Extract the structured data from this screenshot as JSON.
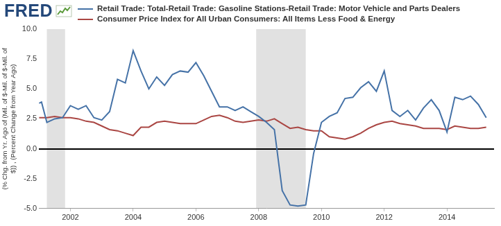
{
  "logo": "FRED",
  "chart_data": {
    "type": "line",
    "legend": "top",
    "grid": false,
    "ylabel": [
      "(% Chg. from Yr. Ago of (Mil. of $-Mil. of $-Mil. of",
      "$)) , (Percent Change from Year Ago)"
    ],
    "xlim": [
      2001,
      2015.5
    ],
    "xticks": [
      2002,
      2004,
      2006,
      2008,
      2010,
      2012,
      2014
    ],
    "ylim": [
      -5,
      10
    ],
    "yticks": [
      {
        "value": -5,
        "label": "-5.0"
      },
      {
        "value": -2.5,
        "label": "-2.5"
      },
      {
        "value": 0,
        "label": "0.0"
      },
      {
        "value": 2.5,
        "label": "2.5"
      },
      {
        "value": 5,
        "label": "5.0"
      },
      {
        "value": 7.5,
        "label": "7.5"
      },
      {
        "value": 10,
        "label": "10.0"
      }
    ],
    "shaded_periods": [
      {
        "start": 2001.25,
        "end": 2001.83
      },
      {
        "start": 2007.92,
        "end": 2009.5
      }
    ],
    "series": [
      {
        "name": "Retail Trade: Total-Retail Trade: Gasoline Stations-Retail Trade: Motor Vehicle and Parts Dealers",
        "color": "#4572a7",
        "x": [
          2001.0,
          2001.08,
          2001.25,
          2001.5,
          2001.75,
          2002.0,
          2002.25,
          2002.5,
          2002.75,
          2003.0,
          2003.25,
          2003.5,
          2003.75,
          2004.0,
          2004.25,
          2004.5,
          2004.75,
          2005.0,
          2005.25,
          2005.5,
          2005.75,
          2006.0,
          2006.25,
          2006.5,
          2006.75,
          2007.0,
          2007.25,
          2007.5,
          2007.75,
          2008.0,
          2008.25,
          2008.5,
          2008.75,
          2009.0,
          2009.25,
          2009.5,
          2009.75,
          2010.0,
          2010.25,
          2010.5,
          2010.75,
          2011.0,
          2011.25,
          2011.5,
          2011.75,
          2012.0,
          2012.25,
          2012.5,
          2012.75,
          2013.0,
          2013.25,
          2013.5,
          2013.75,
          2014.0,
          2014.25,
          2014.5,
          2014.75,
          2015.0,
          2015.25
        ],
        "values": [
          3.8,
          3.9,
          2.2,
          2.5,
          2.6,
          3.6,
          3.3,
          3.6,
          2.6,
          2.4,
          3.1,
          5.8,
          5.5,
          8.2,
          6.5,
          5.0,
          6.0,
          5.3,
          6.2,
          6.5,
          6.4,
          7.2,
          6.1,
          4.8,
          3.5,
          3.5,
          3.2,
          3.5,
          3.1,
          2.7,
          2.2,
          1.6,
          -3.5,
          -4.7,
          -4.8,
          -4.7,
          -0.4,
          2.2,
          2.7,
          3.0,
          4.2,
          4.3,
          5.1,
          5.6,
          4.8,
          6.5,
          3.2,
          2.7,
          3.2,
          2.4,
          3.4,
          4.1,
          3.2,
          1.4,
          4.3,
          4.1,
          4.4,
          3.7,
          2.6
        ]
      },
      {
        "name": "Consumer Price Index for All Urban Consumers: All Items Less Food & Energy",
        "color": "#aa4643",
        "x": [
          2001.0,
          2001.25,
          2001.5,
          2001.75,
          2002.0,
          2002.25,
          2002.5,
          2002.75,
          2003.0,
          2003.25,
          2003.5,
          2003.75,
          2004.0,
          2004.25,
          2004.5,
          2004.75,
          2005.0,
          2005.25,
          2005.5,
          2005.75,
          2006.0,
          2006.25,
          2006.5,
          2006.75,
          2007.0,
          2007.25,
          2007.5,
          2007.75,
          2008.0,
          2008.25,
          2008.5,
          2008.75,
          2009.0,
          2009.25,
          2009.5,
          2009.75,
          2010.0,
          2010.25,
          2010.5,
          2010.75,
          2011.0,
          2011.25,
          2011.5,
          2011.75,
          2012.0,
          2012.25,
          2012.5,
          2012.75,
          2013.0,
          2013.25,
          2013.5,
          2013.75,
          2014.0,
          2014.25,
          2014.5,
          2014.75,
          2015.0,
          2015.25
        ],
        "values": [
          2.6,
          2.6,
          2.7,
          2.6,
          2.6,
          2.5,
          2.3,
          2.2,
          1.9,
          1.6,
          1.5,
          1.3,
          1.1,
          1.8,
          1.8,
          2.2,
          2.3,
          2.2,
          2.1,
          2.1,
          2.1,
          2.4,
          2.7,
          2.8,
          2.6,
          2.3,
          2.2,
          2.3,
          2.4,
          2.3,
          2.5,
          2.1,
          1.7,
          1.8,
          1.6,
          1.5,
          1.5,
          1.0,
          0.9,
          0.8,
          1.0,
          1.3,
          1.7,
          2.0,
          2.2,
          2.3,
          2.1,
          2.0,
          1.9,
          1.7,
          1.7,
          1.7,
          1.6,
          1.9,
          1.8,
          1.7,
          1.7,
          1.8
        ]
      }
    ]
  }
}
